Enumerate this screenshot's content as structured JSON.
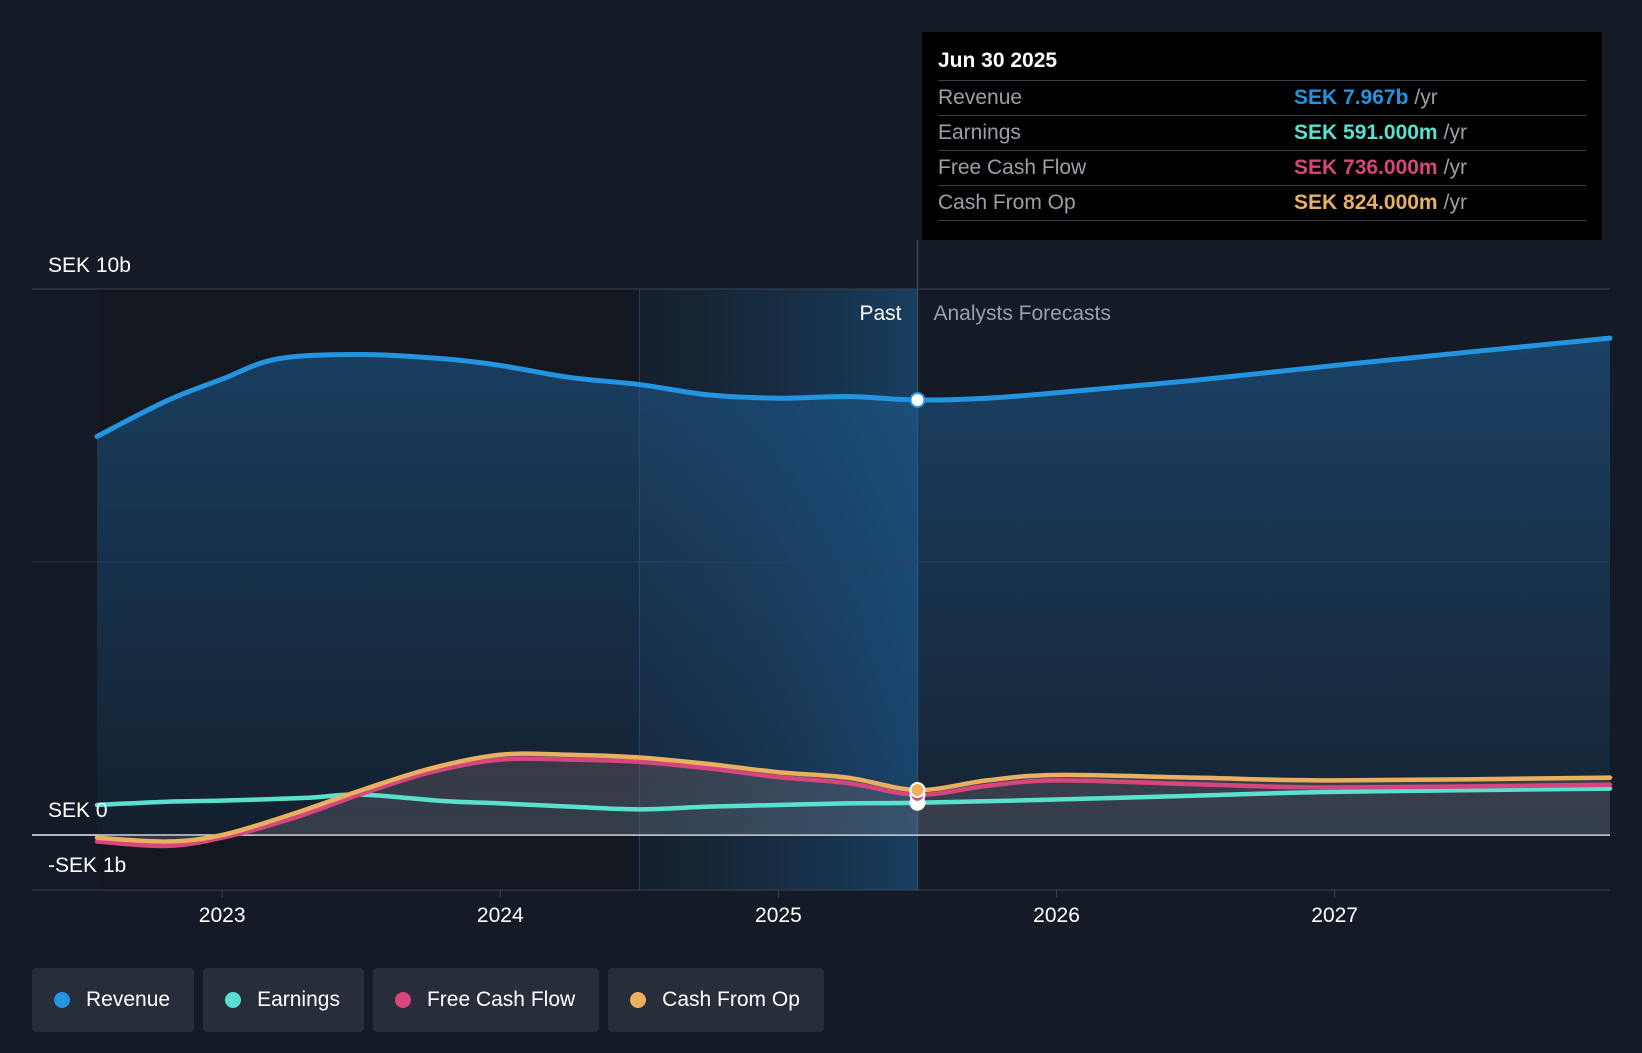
{
  "chart_data": {
    "type": "area",
    "currency_labels": {
      "top": "SEK 10b",
      "zero": "SEK 0",
      "bottom": "-SEK 1b"
    },
    "ylim": [
      -1,
      10
    ],
    "xlim": [
      2022.55,
      2027.99
    ],
    "x_ticks": [
      2023,
      2024,
      2025,
      2026,
      2027
    ],
    "x_tick_labels": [
      "2023",
      "2024",
      "2025",
      "2026",
      "2027"
    ],
    "past_label": "Past",
    "forecast_label": "Analysts Forecasts",
    "divider_x": 2025.5,
    "highlight_start_x": 2024.5,
    "series": [
      {
        "name": "Revenue",
        "color": "#2394df",
        "points": [
          [
            2022.55,
            7.3
          ],
          [
            2022.8,
            7.95
          ],
          [
            2023.0,
            8.35
          ],
          [
            2023.2,
            8.72
          ],
          [
            2023.5,
            8.8
          ],
          [
            2023.8,
            8.72
          ],
          [
            2024.0,
            8.6
          ],
          [
            2024.25,
            8.38
          ],
          [
            2024.5,
            8.25
          ],
          [
            2024.75,
            8.06
          ],
          [
            2025.0,
            8.0
          ],
          [
            2025.25,
            8.03
          ],
          [
            2025.5,
            7.967
          ],
          [
            2025.75,
            8.0
          ],
          [
            2026.0,
            8.1
          ],
          [
            2026.5,
            8.33
          ],
          [
            2027.0,
            8.6
          ],
          [
            2027.99,
            9.1
          ]
        ]
      },
      {
        "name": "Earnings",
        "color": "#59e0cf",
        "points": [
          [
            2022.55,
            0.55
          ],
          [
            2022.8,
            0.61
          ],
          [
            2023.0,
            0.63
          ],
          [
            2023.3,
            0.68
          ],
          [
            2023.5,
            0.74
          ],
          [
            2023.8,
            0.62
          ],
          [
            2024.0,
            0.58
          ],
          [
            2024.25,
            0.52
          ],
          [
            2024.5,
            0.47
          ],
          [
            2024.75,
            0.52
          ],
          [
            2025.0,
            0.55
          ],
          [
            2025.25,
            0.58
          ],
          [
            2025.5,
            0.591
          ],
          [
            2026.0,
            0.65
          ],
          [
            2026.5,
            0.72
          ],
          [
            2027.0,
            0.79
          ],
          [
            2027.99,
            0.85
          ]
        ]
      },
      {
        "name": "Free Cash Flow",
        "color": "#d6467e",
        "points": [
          [
            2022.55,
            -0.12
          ],
          [
            2022.8,
            -0.2
          ],
          [
            2023.0,
            -0.05
          ],
          [
            2023.25,
            0.3
          ],
          [
            2023.5,
            0.75
          ],
          [
            2023.75,
            1.15
          ],
          [
            2024.0,
            1.38
          ],
          [
            2024.25,
            1.38
          ],
          [
            2024.5,
            1.34
          ],
          [
            2024.75,
            1.22
          ],
          [
            2025.0,
            1.06
          ],
          [
            2025.25,
            0.95
          ],
          [
            2025.5,
            0.736
          ],
          [
            2025.75,
            0.9
          ],
          [
            2026.0,
            1.0
          ],
          [
            2026.5,
            0.93
          ],
          [
            2027.0,
            0.87
          ],
          [
            2027.99,
            0.92
          ]
        ]
      },
      {
        "name": "Cash From Op",
        "color": "#e9b060",
        "points": [
          [
            2022.55,
            -0.05
          ],
          [
            2022.8,
            -0.12
          ],
          [
            2023.0,
            0.0
          ],
          [
            2023.25,
            0.38
          ],
          [
            2023.5,
            0.82
          ],
          [
            2023.75,
            1.22
          ],
          [
            2024.0,
            1.47
          ],
          [
            2024.25,
            1.47
          ],
          [
            2024.5,
            1.42
          ],
          [
            2024.75,
            1.3
          ],
          [
            2025.0,
            1.15
          ],
          [
            2025.25,
            1.05
          ],
          [
            2025.5,
            0.824
          ],
          [
            2025.75,
            1.0
          ],
          [
            2026.0,
            1.1
          ],
          [
            2026.5,
            1.05
          ],
          [
            2027.0,
            1.0
          ],
          [
            2027.99,
            1.05
          ]
        ]
      }
    ]
  },
  "tooltip": {
    "date": "Jun 30 2025",
    "rows": [
      {
        "label": "Revenue",
        "value": "SEK 7.967b",
        "unit": "/yr",
        "color": "#2394df"
      },
      {
        "label": "Earnings",
        "value": "SEK 591.000m",
        "unit": "/yr",
        "color": "#59e0cf"
      },
      {
        "label": "Free Cash Flow",
        "value": "SEK 736.000m",
        "unit": "/yr",
        "color": "#d6467e"
      },
      {
        "label": "Cash From Op",
        "value": "SEK 824.000m",
        "unit": "/yr",
        "color": "#e9b060"
      }
    ]
  },
  "legend": [
    {
      "label": "Revenue",
      "color": "#2394df"
    },
    {
      "label": "Earnings",
      "color": "#59e0cf"
    },
    {
      "label": "Free Cash Flow",
      "color": "#d6467e"
    },
    {
      "label": "Cash From Op",
      "color": "#e9b060"
    }
  ]
}
